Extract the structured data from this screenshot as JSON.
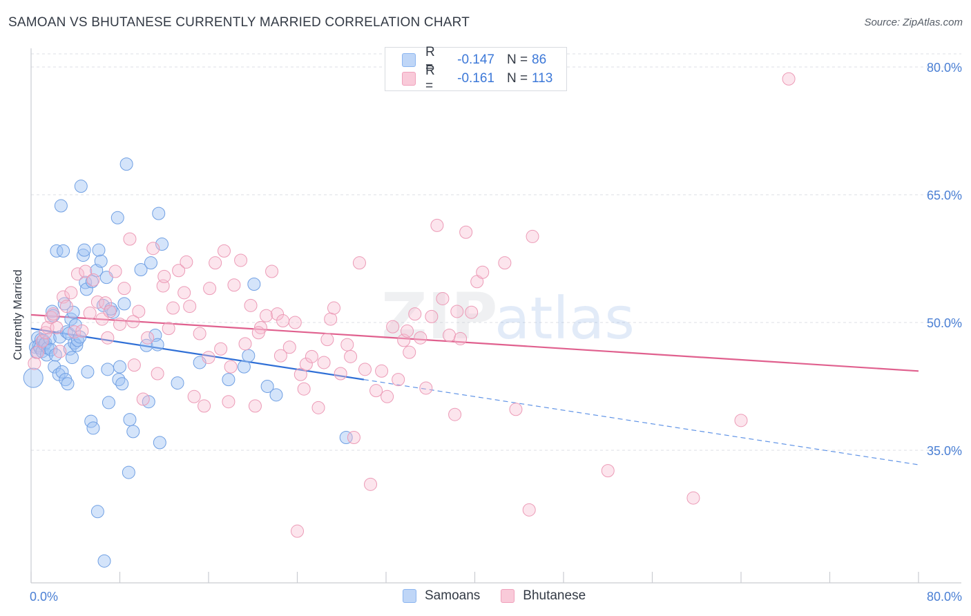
{
  "title": "SAMOAN VS BHUTANESE CURRENTLY MARRIED CORRELATION CHART",
  "source": "Source: ZipAtlas.com",
  "watermark": "ZIPatlas",
  "legend": {
    "rows": [
      {
        "r_label": "R =",
        "r_value": "-0.147",
        "n_label": "N =",
        "n_value": "86",
        "color": "#8ab4f0",
        "fill": "#bfd6f7"
      },
      {
        "r_label": "R =",
        "r_value": "-0.161",
        "n_label": "N =",
        "n_value": "113",
        "color": "#f0a0bb",
        "fill": "#f9cad9"
      }
    ]
  },
  "bottom_legend": [
    {
      "label": "Samoans",
      "color": "#8ab4f0",
      "fill": "#bfd6f7"
    },
    {
      "label": "Bhutanese",
      "color": "#f0a0bb",
      "fill": "#f9cad9"
    }
  ],
  "chart_data": {
    "type": "scatter",
    "title": "SAMOAN VS BHUTANESE CURRENTLY MARRIED CORRELATION CHART",
    "xlabel": "",
    "ylabel": "Currently Married",
    "xlim": [
      0,
      80
    ],
    "ylim": [
      22,
      82
    ],
    "x_tick_labels": [
      "0.0%",
      "80.0%"
    ],
    "y_tick_labels": [
      "80.0%",
      "65.0%",
      "50.0%",
      "35.0%"
    ],
    "y_ticks": [
      80,
      65,
      50,
      35
    ],
    "grid": true,
    "legend_position": "top-center",
    "series": [
      {
        "name": "Samoans",
        "color": "#4a86e8",
        "trend": {
          "x": [
            0,
            30
          ],
          "y": [
            49.3,
            43.3
          ],
          "dashed_to_x": 80,
          "dashed_to_y": 33.3
        },
        "points": [
          [
            0.2,
            43.5
          ],
          [
            0.4,
            47.1
          ],
          [
            0.5,
            46.5
          ],
          [
            0.6,
            48.2
          ],
          [
            0.7,
            47.3
          ],
          [
            0.8,
            47.0
          ],
          [
            0.9,
            48.0
          ],
          [
            1.0,
            46.6
          ],
          [
            1.1,
            47.9
          ],
          [
            1.2,
            47.4
          ],
          [
            1.3,
            47.6
          ],
          [
            1.4,
            46.2
          ],
          [
            1.5,
            47.0
          ],
          [
            1.7,
            48.1
          ],
          [
            1.8,
            46.8
          ],
          [
            1.9,
            51.3
          ],
          [
            2.0,
            50.8
          ],
          [
            2.1,
            44.8
          ],
          [
            2.2,
            46.2
          ],
          [
            2.3,
            58.4
          ],
          [
            2.5,
            43.9
          ],
          [
            2.6,
            48.3
          ],
          [
            2.7,
            63.7
          ],
          [
            2.8,
            44.2
          ],
          [
            2.9,
            58.4
          ],
          [
            3.0,
            52.2
          ],
          [
            3.1,
            43.3
          ],
          [
            3.2,
            48.9
          ],
          [
            3.3,
            42.8
          ],
          [
            3.4,
            48.7
          ],
          [
            3.5,
            46.9
          ],
          [
            3.6,
            50.4
          ],
          [
            3.7,
            45.9
          ],
          [
            3.8,
            51.2
          ],
          [
            3.9,
            47.6
          ],
          [
            4.0,
            49.7
          ],
          [
            4.1,
            47.3
          ],
          [
            4.2,
            47.9
          ],
          [
            4.4,
            48.3
          ],
          [
            4.5,
            66.0
          ],
          [
            4.7,
            57.9
          ],
          [
            4.8,
            58.5
          ],
          [
            4.9,
            54.7
          ],
          [
            5.0,
            53.9
          ],
          [
            5.1,
            44.2
          ],
          [
            5.4,
            38.4
          ],
          [
            5.6,
            37.6
          ],
          [
            5.9,
            56.1
          ],
          [
            6.0,
            27.8
          ],
          [
            6.1,
            58.5
          ],
          [
            6.3,
            57.2
          ],
          [
            6.5,
            52.0
          ],
          [
            6.6,
            22.0
          ],
          [
            6.8,
            55.3
          ],
          [
            6.9,
            44.5
          ],
          [
            7.0,
            40.6
          ],
          [
            7.4,
            51.2
          ],
          [
            7.8,
            62.3
          ],
          [
            7.9,
            43.3
          ],
          [
            8.0,
            44.8
          ],
          [
            8.2,
            42.8
          ],
          [
            8.4,
            52.2
          ],
          [
            8.6,
            68.6
          ],
          [
            8.8,
            32.4
          ],
          [
            8.9,
            38.6
          ],
          [
            9.2,
            37.2
          ],
          [
            9.9,
            56.2
          ],
          [
            10.4,
            47.3
          ],
          [
            10.6,
            40.7
          ],
          [
            10.8,
            57.0
          ],
          [
            11.2,
            48.5
          ],
          [
            11.4,
            47.4
          ],
          [
            11.5,
            62.8
          ],
          [
            11.6,
            35.9
          ],
          [
            11.8,
            59.2
          ],
          [
            13.2,
            42.9
          ],
          [
            15.2,
            45.3
          ],
          [
            17.8,
            43.3
          ],
          [
            19.2,
            44.8
          ],
          [
            19.6,
            46.1
          ],
          [
            20.1,
            54.5
          ],
          [
            21.3,
            42.5
          ],
          [
            22.1,
            41.5
          ],
          [
            28.4,
            36.5
          ],
          [
            5.5,
            54.8
          ],
          [
            7.2,
            51.6
          ]
        ]
      },
      {
        "name": "Bhutanese",
        "color": "#e8709a",
        "trend": {
          "x": [
            0,
            80
          ],
          "y": [
            50.9,
            44.3
          ]
        },
        "points": [
          [
            0.3,
            45.2
          ],
          [
            0.6,
            46.5
          ],
          [
            1.0,
            47.8
          ],
          [
            1.3,
            48.8
          ],
          [
            1.5,
            49.4
          ],
          [
            1.8,
            50.6
          ],
          [
            2.0,
            51.0
          ],
          [
            2.3,
            49.4
          ],
          [
            2.6,
            46.6
          ],
          [
            2.9,
            53.0
          ],
          [
            3.2,
            51.9
          ],
          [
            3.6,
            53.5
          ],
          [
            3.9,
            48.9
          ],
          [
            4.2,
            55.7
          ],
          [
            4.6,
            49.0
          ],
          [
            4.9,
            56.0
          ],
          [
            5.3,
            51.1
          ],
          [
            5.6,
            55.0
          ],
          [
            6.0,
            52.4
          ],
          [
            6.4,
            50.4
          ],
          [
            6.7,
            52.3
          ],
          [
            7.1,
            51.3
          ],
          [
            7.6,
            56.0
          ],
          [
            8.0,
            49.8
          ],
          [
            8.4,
            54.0
          ],
          [
            8.9,
            59.8
          ],
          [
            9.3,
            45.0
          ],
          [
            9.7,
            51.3
          ],
          [
            10.1,
            41.0
          ],
          [
            10.5,
            48.2
          ],
          [
            11.0,
            58.7
          ],
          [
            11.4,
            44.0
          ],
          [
            11.9,
            54.3
          ],
          [
            12.4,
            49.3
          ],
          [
            12.8,
            51.7
          ],
          [
            13.3,
            56.1
          ],
          [
            13.8,
            53.5
          ],
          [
            14.3,
            51.9
          ],
          [
            14.7,
            41.3
          ],
          [
            15.2,
            48.7
          ],
          [
            15.6,
            40.2
          ],
          [
            16.1,
            54.0
          ],
          [
            16.6,
            57.0
          ],
          [
            17.1,
            46.9
          ],
          [
            17.4,
            58.4
          ],
          [
            17.8,
            40.7
          ],
          [
            18.3,
            54.4
          ],
          [
            18.9,
            57.3
          ],
          [
            19.3,
            47.5
          ],
          [
            19.8,
            52.0
          ],
          [
            20.2,
            40.2
          ],
          [
            20.7,
            49.4
          ],
          [
            21.2,
            50.8
          ],
          [
            21.7,
            56.0
          ],
          [
            22.2,
            51.0
          ],
          [
            22.7,
            50.2
          ],
          [
            23.3,
            47.1
          ],
          [
            23.8,
            50.0
          ],
          [
            24.3,
            43.9
          ],
          [
            24.8,
            45.1
          ],
          [
            25.3,
            46.0
          ],
          [
            25.9,
            40.0
          ],
          [
            26.4,
            45.3
          ],
          [
            27.0,
            50.4
          ],
          [
            27.3,
            51.7
          ],
          [
            27.9,
            44.0
          ],
          [
            28.5,
            47.4
          ],
          [
            29.1,
            36.5
          ],
          [
            29.6,
            57.0
          ],
          [
            30.1,
            44.5
          ],
          [
            30.6,
            31.0
          ],
          [
            31.1,
            42.0
          ],
          [
            31.6,
            44.3
          ],
          [
            32.1,
            41.3
          ],
          [
            32.6,
            49.5
          ],
          [
            33.1,
            43.3
          ],
          [
            33.6,
            47.9
          ],
          [
            34.1,
            46.5
          ],
          [
            34.6,
            51.0
          ],
          [
            35.1,
            48.2
          ],
          [
            35.6,
            42.3
          ],
          [
            36.1,
            50.7
          ],
          [
            36.6,
            61.4
          ],
          [
            37.1,
            52.8
          ],
          [
            37.7,
            48.5
          ],
          [
            38.2,
            39.2
          ],
          [
            38.7,
            48.1
          ],
          [
            39.2,
            60.6
          ],
          [
            39.7,
            51.2
          ],
          [
            40.2,
            54.8
          ],
          [
            40.7,
            55.9
          ],
          [
            42.7,
            57.0
          ],
          [
            43.7,
            39.8
          ],
          [
            44.9,
            28.0
          ],
          [
            45.2,
            60.1
          ],
          [
            52.0,
            32.6
          ],
          [
            59.7,
            29.4
          ],
          [
            64.0,
            38.5
          ],
          [
            68.3,
            78.6
          ],
          [
            24.0,
            25.5
          ],
          [
            6.9,
            48.2
          ],
          [
            9.2,
            50.1
          ],
          [
            12.0,
            55.4
          ],
          [
            14.0,
            57.1
          ],
          [
            16.0,
            45.9
          ],
          [
            18.0,
            44.8
          ],
          [
            20.5,
            48.8
          ],
          [
            22.5,
            46.1
          ],
          [
            24.6,
            42.2
          ],
          [
            26.7,
            48.0
          ],
          [
            28.8,
            46.0
          ],
          [
            33.9,
            49.0
          ],
          [
            38.4,
            51.3
          ]
        ]
      }
    ]
  }
}
